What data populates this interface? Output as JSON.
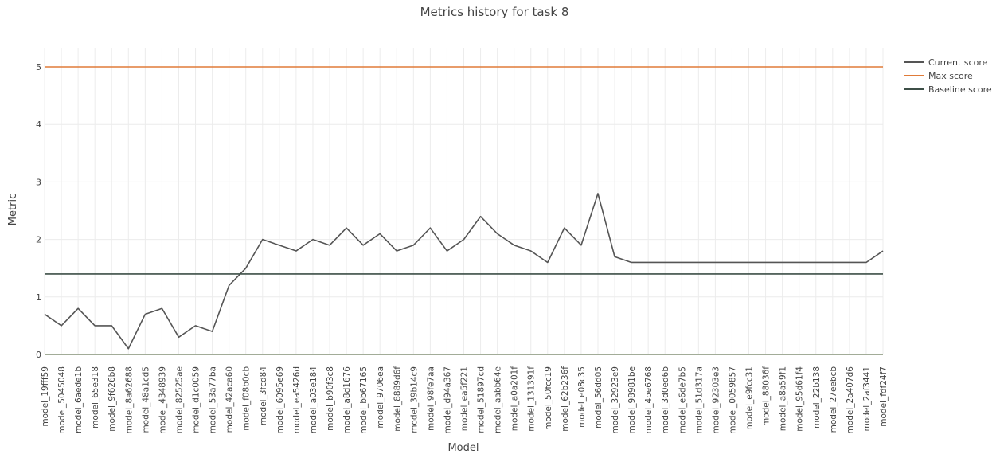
{
  "chart_data": {
    "type": "line",
    "title": "Metrics history for task 8",
    "xlabel": "Model",
    "ylabel": "Metric",
    "ylim": [
      0,
      5
    ],
    "yticks": [
      0,
      1,
      2,
      3,
      4,
      5
    ],
    "grid": true,
    "legend_position": "top-right",
    "categories": [
      "model_19fff59",
      "model_5045048",
      "model_6aede1b",
      "model_65e318",
      "model_9f626b8",
      "model_8a62688",
      "model_48a1cd5",
      "model_4348939",
      "model_82525ae",
      "model_d1c0059",
      "model_53a77ba",
      "model_42aca60",
      "model_f08b0cb",
      "model_3fcd84",
      "model_6095e69",
      "model_ea5426d",
      "model_a03e184",
      "model_b90f3c8",
      "model_a8d1676",
      "model_bb67165",
      "model_9706ea",
      "model_8889d6f",
      "model_39b14c9",
      "model_98fe7aa",
      "model_d94a367",
      "model_ea5f221",
      "model_51897cd",
      "model_aabb64e",
      "model_a0a201f",
      "model_131391f",
      "model_50fcc19",
      "model_62b236f",
      "model_e08c35",
      "model_56dd05",
      "model_32923e9",
      "model_98981be",
      "model_4be6768",
      "model_3d0ed6b",
      "model_e6de7b5",
      "model_51d317a",
      "model_92303e3",
      "model_0059857",
      "model_e9fcc31",
      "model_88036f",
      "model_a8a59f1",
      "model_95d61f4",
      "model_22b138",
      "model_27eebcb",
      "model_2a407d6",
      "model_2af3441",
      "model_fdf24f7"
    ],
    "series": [
      {
        "name": "Current score",
        "color": "#555555",
        "values": [
          0.7,
          0.5,
          0.8,
          0.5,
          0.5,
          0.1,
          0.7,
          0.8,
          0.3,
          0.5,
          0.4,
          1.2,
          1.5,
          2.0,
          1.9,
          1.8,
          2.0,
          1.9,
          2.2,
          1.9,
          2.1,
          1.8,
          1.9,
          2.2,
          1.8,
          2.0,
          2.4,
          2.1,
          1.9,
          1.8,
          1.6,
          2.2,
          1.9,
          2.8,
          1.7,
          1.6,
          1.6,
          1.6,
          1.6,
          1.6,
          1.6,
          1.6,
          1.6,
          1.6,
          1.6,
          1.6,
          1.6,
          1.6,
          1.6,
          1.6,
          1.8
        ]
      },
      {
        "name": "Max score",
        "color": "#e07b39",
        "constant": 5
      },
      {
        "name": "Baseline score",
        "color": "#3d4f47",
        "constant": 1.4
      }
    ]
  }
}
